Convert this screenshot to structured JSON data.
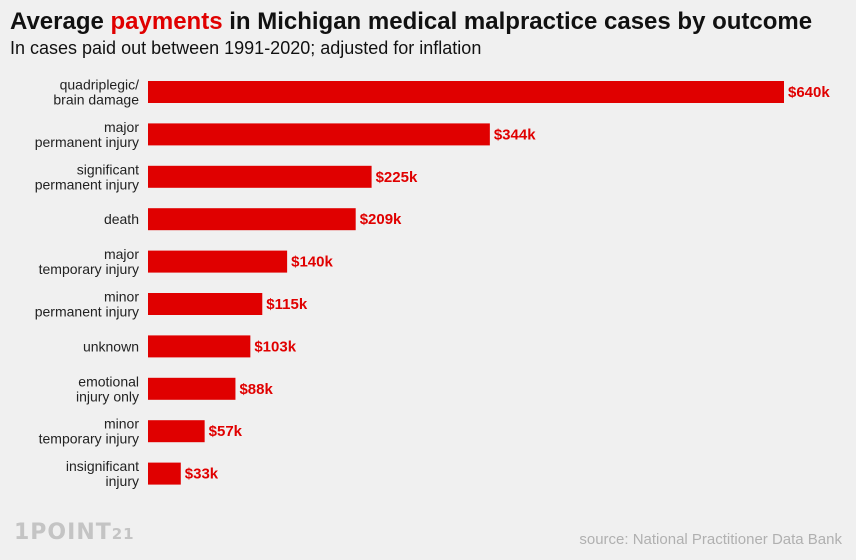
{
  "title": {
    "prefix": "Average ",
    "highlight": "payments",
    "suffix": " in Michigan medical malpractice cases by outcome"
  },
  "subtitle": "In cases paid out between 1991-2020; adjusted for inflation",
  "logo": {
    "main": "1POINT",
    "small": "21"
  },
  "source": "source: National Practitioner Data Bank",
  "colors": {
    "bar": "#e00000",
    "highlight": "#e00000",
    "background": "#f0f0f0"
  },
  "chart_data": {
    "type": "bar",
    "orientation": "horizontal",
    "categories": [
      "quadriplegic/\nbrain damage",
      "major\npermanent injury",
      "significant\npermanent injury",
      "death",
      "major\ntemporary injury",
      "minor\npermanent injury",
      "unknown",
      "emotional\ninjury only",
      "minor\ntemporary injury",
      "insignificant\ninjury"
    ],
    "values": [
      640,
      344,
      225,
      209,
      140,
      115,
      103,
      88,
      57,
      33
    ],
    "value_labels": [
      "$640k",
      "$344k",
      "$225k",
      "$209k",
      "$140k",
      "$115k",
      "$103k",
      "$88k",
      "$57k",
      "$33k"
    ],
    "unit": "thousand USD",
    "xlim": [
      0,
      640
    ],
    "grid": false,
    "legend": "none"
  }
}
